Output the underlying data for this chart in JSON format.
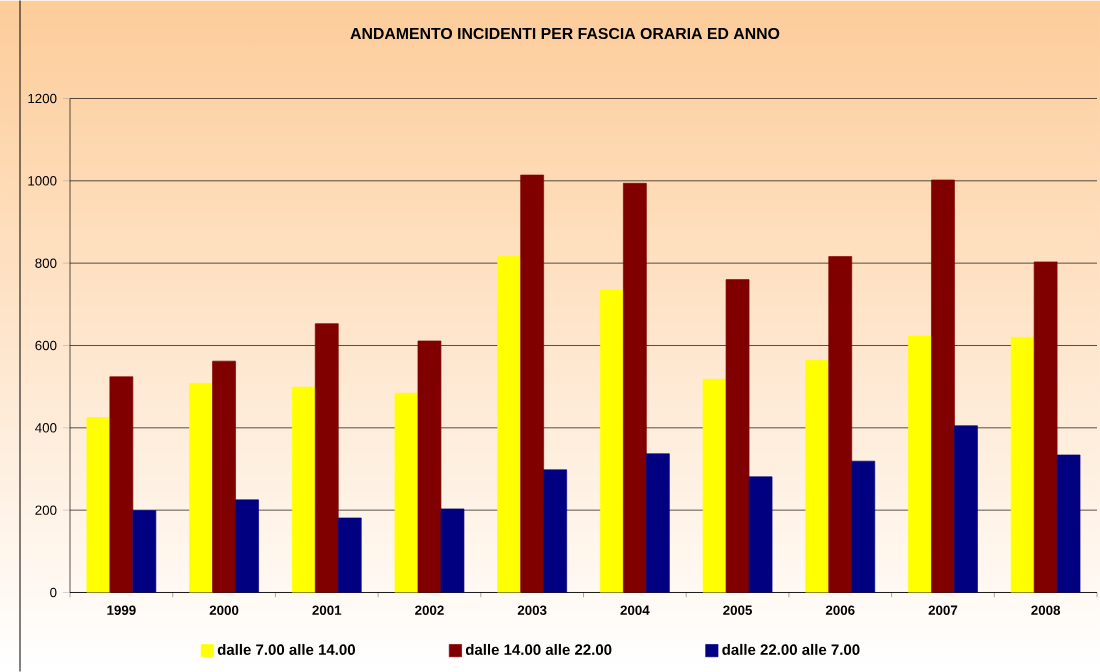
{
  "chart_data": {
    "type": "bar",
    "title": "ANDAMENTO INCIDENTI PER FASCIA ORARIA ED ANNO",
    "categories": [
      "1999",
      "2000",
      "2001",
      "2002",
      "2003",
      "2004",
      "2005",
      "2006",
      "2007",
      "2008"
    ],
    "series": [
      {
        "name": "dalle 7.00 alle 14.00",
        "color": "#ffff00",
        "values": [
          425,
          508,
          499,
          484,
          816,
          735,
          518,
          564,
          623,
          620
        ]
      },
      {
        "name": "dalle 14.00 alle 22.00",
        "color": "#800000",
        "values": [
          524,
          562,
          653,
          611,
          1014,
          994,
          760,
          816,
          1002,
          803
        ]
      },
      {
        "name": "dalle 22.00 alle 7.00",
        "color": "#000080",
        "values": [
          199,
          225,
          181,
          203,
          298,
          337,
          281,
          319,
          405,
          334
        ]
      }
    ],
    "ylim": [
      0,
      1200
    ],
    "yticks": [
      0,
      200,
      400,
      600,
      800,
      1000,
      1200
    ],
    "grid": "y",
    "legend": "bottom"
  }
}
